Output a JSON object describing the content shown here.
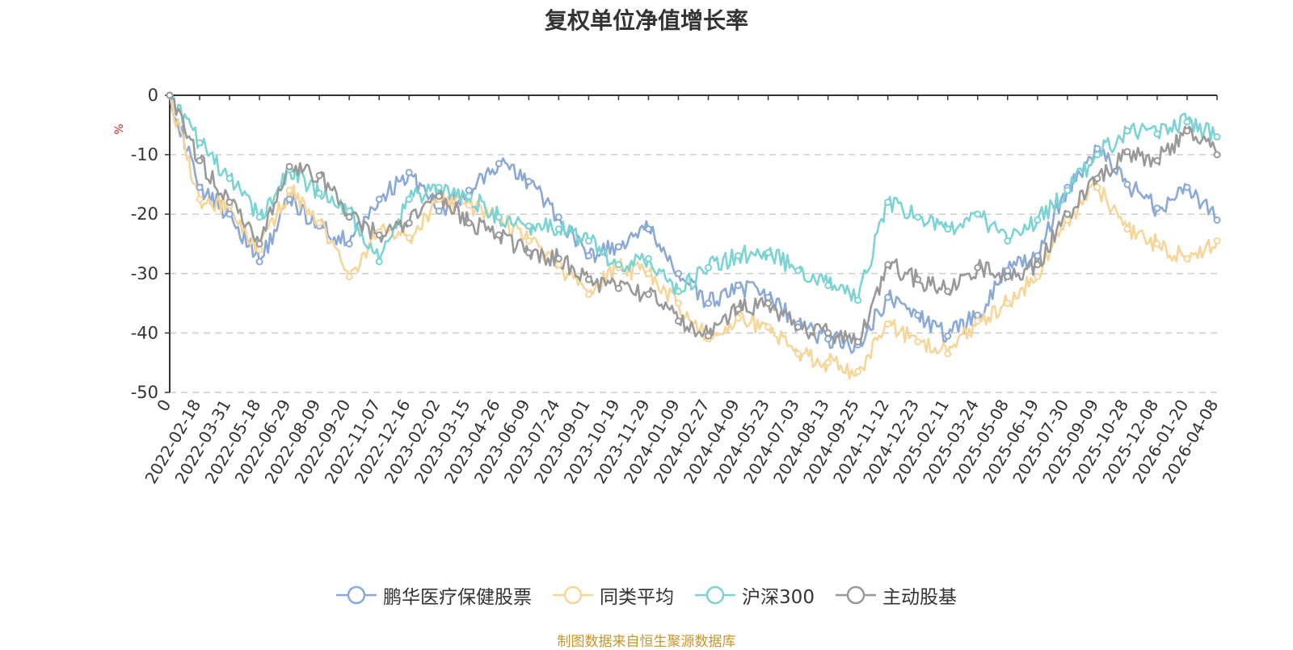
{
  "chart_data": {
    "type": "line",
    "title": "复权单位净值增长率",
    "ylabel": "%",
    "ylim": [
      -50,
      0
    ],
    "yticks": [
      0,
      -10,
      -20,
      -30,
      -40,
      -50
    ],
    "x_start_label": "0",
    "categories": [
      "2022-02-18",
      "2022-03-31",
      "2022-05-18",
      "2022-06-29",
      "2022-08-09",
      "2022-09-20",
      "2022-11-07",
      "2022-12-16",
      "2023-02-02",
      "2023-03-15",
      "2023-04-26",
      "2023-06-09",
      "2023-07-24",
      "2023-09-01",
      "2023-10-19",
      "2023-11-29",
      "2024-01-09",
      "2024-02-27",
      "2024-04-09",
      "2024-05-23",
      "2024-07-03",
      "2024-08-13",
      "2024-09-25",
      "2024-11-12",
      "2024-12-23",
      "2025-02-11",
      "2025-03-24",
      "2025-05-08",
      "2025-06-19",
      "2025-07-30",
      "2025-09-09",
      "2025-10-28",
      "2025-12-08",
      "2026-01-20",
      "2026-04-08"
    ],
    "series": [
      {
        "name": "鹏华医疗保健股票",
        "color": "#8aa9d8",
        "values": [
          -15.5,
          -20.0,
          -28.0,
          -17.5,
          -22.0,
          -25.0,
          -17.5,
          -13.0,
          -19.5,
          -16.0,
          -11.5,
          -14.5,
          -20.5,
          -27.0,
          -25.5,
          -22.5,
          -30.0,
          -35.0,
          -32.0,
          -34.0,
          -38.5,
          -41.0,
          -42.0,
          -34.0,
          -37.0,
          -40.5,
          -37.0,
          -29.5,
          -27.0,
          -15.5,
          -9.0,
          -15.0,
          -19.0,
          -15.5,
          -21.0
        ]
      },
      {
        "name": "同类平均",
        "color": "#f7d598",
        "values": [
          -17.5,
          -18.5,
          -26.0,
          -16.0,
          -21.5,
          -30.5,
          -23.0,
          -24.0,
          -17.5,
          -18.5,
          -20.5,
          -24.5,
          -28.5,
          -33.5,
          -29.0,
          -30.0,
          -35.0,
          -41.0,
          -37.5,
          -39.0,
          -43.5,
          -45.0,
          -46.5,
          -38.5,
          -41.5,
          -43.5,
          -38.0,
          -35.0,
          -30.5,
          -21.0,
          -15.5,
          -22.5,
          -25.0,
          -27.5,
          -24.5
        ]
      },
      {
        "name": "沪深300",
        "color": "#7cd3d3",
        "values": [
          -8.0,
          -14.0,
          -20.5,
          -12.5,
          -16.5,
          -19.5,
          -28.0,
          -17.5,
          -15.5,
          -17.0,
          -20.5,
          -22.0,
          -22.5,
          -24.5,
          -28.5,
          -27.5,
          -33.0,
          -29.0,
          -27.0,
          -26.5,
          -29.5,
          -32.0,
          -34.5,
          -18.0,
          -20.5,
          -22.5,
          -20.0,
          -24.5,
          -21.0,
          -16.0,
          -10.0,
          -6.0,
          -6.5,
          -4.5,
          -7.0
        ]
      },
      {
        "name": "主动股基",
        "color": "#999999",
        "values": [
          -11.0,
          -18.0,
          -25.0,
          -12.0,
          -13.5,
          -20.5,
          -23.5,
          -21.5,
          -17.0,
          -21.5,
          -23.5,
          -26.5,
          -27.5,
          -31.0,
          -32.5,
          -33.5,
          -38.0,
          -40.5,
          -36.0,
          -35.0,
          -39.0,
          -40.0,
          -41.5,
          -28.5,
          -31.0,
          -33.0,
          -29.0,
          -30.5,
          -28.5,
          -20.0,
          -14.0,
          -9.5,
          -11.0,
          -6.0,
          -10.0
        ]
      }
    ]
  },
  "legend": {
    "items": [
      {
        "label": "鹏华医疗保健股票",
        "color": "#8aa9d8"
      },
      {
        "label": "同类平均",
        "color": "#f7d598"
      },
      {
        "label": "沪深300",
        "color": "#7cd3d3"
      },
      {
        "label": "主动股基",
        "color": "#999999"
      }
    ]
  },
  "footer": {
    "source": "制图数据来自恒生聚源数据库"
  },
  "colors": {
    "axis": "#333333",
    "grid": "#cccccc",
    "ylabel": "#e02020"
  }
}
